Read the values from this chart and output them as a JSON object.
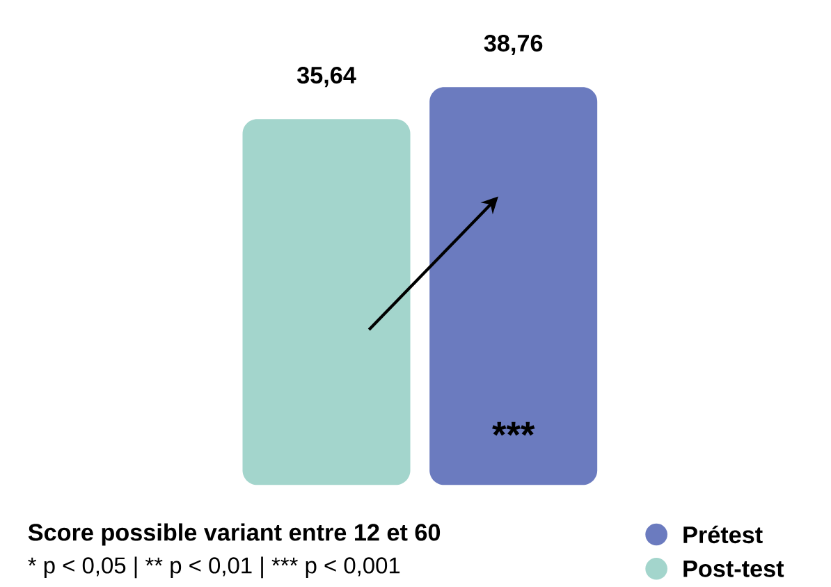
{
  "chart_data": {
    "type": "bar",
    "categories": [
      null
    ],
    "series": [
      {
        "name": "Post-test",
        "color": "#a3d5cc",
        "values": [
          35.64
        ],
        "value_labels": [
          "35,64"
        ]
      },
      {
        "name": "Prétest",
        "color": "#6b7bbf",
        "values": [
          38.76
        ],
        "value_labels": [
          "38,76"
        ]
      }
    ],
    "annotations": [
      "Score possible variant entre 12 et 60",
      "* p < 0,05 | ** p < 0,01  | *** p < 0,001",
      "***"
    ],
    "legend": "bottom right"
  }
}
